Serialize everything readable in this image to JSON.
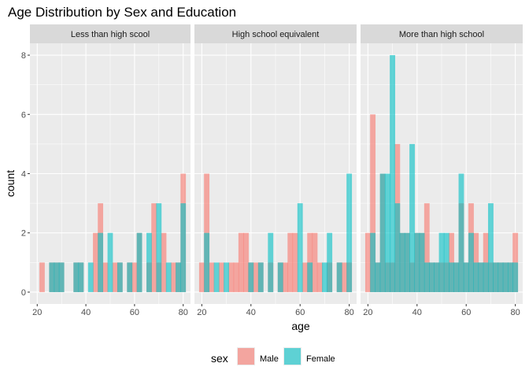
{
  "chart_data": {
    "type": "bar",
    "title": "Age Distribution by Sex and Education",
    "xlabel": "age",
    "ylabel": "count",
    "xlim": [
      17,
      83
    ],
    "ylim": [
      -0.4,
      8.4
    ],
    "x_ticks": [
      20,
      40,
      60,
      80
    ],
    "y_ticks": [
      0,
      2,
      4,
      6,
      8
    ],
    "bin_width": 2.2,
    "grid": true,
    "legend": {
      "title": "sex",
      "position": "bottom",
      "entries": [
        {
          "name": "Male",
          "color": "#F8766D"
        },
        {
          "name": "Female",
          "color": "#00BFC4"
        }
      ]
    },
    "series_colors": {
      "Male": "#F8766D",
      "Female": "#00BFC4"
    },
    "facets": [
      {
        "label": "Less than high scool",
        "series": [
          {
            "name": "Male",
            "x": [
              22,
              26,
              28,
              30,
              36,
              38,
              44,
              46,
              48,
              52,
              54,
              58,
              60,
              62,
              66,
              68,
              70,
              72,
              76,
              78,
              80
            ],
            "values": [
              1,
              1,
              1,
              1,
              1,
              1,
              2,
              3,
              1,
              1,
              1,
              1,
              1,
              2,
              1,
              3,
              1,
              2,
              1,
              1,
              4
            ]
          },
          {
            "name": "Female",
            "x": [
              26,
              28,
              30,
              36,
              38,
              42,
              46,
              50,
              54,
              58,
              62,
              66,
              70,
              74,
              78,
              80
            ],
            "values": [
              1,
              1,
              1,
              1,
              1,
              1,
              2,
              2,
              1,
              1,
              2,
              2,
              3,
              1,
              1,
              3
            ]
          }
        ]
      },
      {
        "label": "High school equivalent",
        "series": [
          {
            "name": "Male",
            "x": [
              20,
              22,
              24,
              28,
              32,
              34,
              36,
              38,
              40,
              42,
              44,
              48,
              52,
              54,
              56,
              58,
              62,
              64,
              66,
              68,
              72,
              76,
              78,
              80
            ],
            "values": [
              1,
              4,
              1,
              1,
              1,
              1,
              2,
              2,
              1,
              1,
              1,
              1,
              1,
              1,
              2,
              2,
              1,
              2,
              2,
              1,
              1,
              1,
              1,
              1
            ]
          },
          {
            "name": "Female",
            "x": [
              22,
              26,
              30,
              40,
              44,
              48,
              52,
              60,
              64,
              70,
              72,
              76,
              80
            ],
            "values": [
              2,
              1,
              1,
              1,
              1,
              2,
              1,
              3,
              1,
              1,
              2,
              1,
              4
            ]
          }
        ]
      },
      {
        "label": "More than high school",
        "series": [
          {
            "name": "Male",
            "x": [
              20,
              22,
              24,
              26,
              28,
              30,
              32,
              34,
              36,
              38,
              40,
              42,
              44,
              46,
              48,
              50,
              52,
              54,
              56,
              58,
              60,
              62,
              64,
              66,
              68,
              70,
              72,
              74,
              76,
              78,
              80
            ],
            "values": [
              2,
              6,
              1,
              4,
              1,
              1,
              5,
              2,
              2,
              1,
              2,
              2,
              3,
              1,
              1,
              1,
              1,
              2,
              1,
              3,
              1,
              3,
              2,
              1,
              2,
              1,
              1,
              1,
              1,
              1,
              2
            ]
          },
          {
            "name": "Female",
            "x": [
              22,
              24,
              26,
              28,
              30,
              32,
              34,
              36,
              38,
              40,
              42,
              44,
              46,
              48,
              50,
              52,
              54,
              56,
              58,
              60,
              62,
              64,
              66,
              68,
              70,
              72,
              74,
              76,
              78,
              80
            ],
            "values": [
              2,
              1,
              4,
              4,
              8,
              3,
              2,
              2,
              5,
              2,
              2,
              1,
              1,
              1,
              2,
              2,
              1,
              1,
              4,
              1,
              2,
              1,
              1,
              1,
              3,
              1,
              1,
              1,
              1,
              1
            ]
          }
        ]
      }
    ]
  }
}
